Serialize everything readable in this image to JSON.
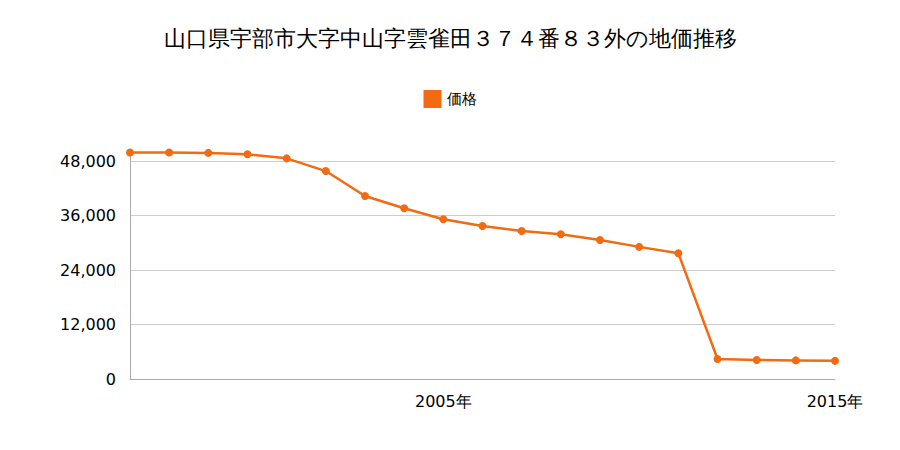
{
  "chart_data": {
    "type": "line",
    "title": "山口県宇部市大字中山字雲雀田３７４番８３外の地価推移",
    "categories": [
      null,
      null,
      null,
      null,
      null,
      null,
      null,
      null,
      "2005年",
      null,
      null,
      null,
      null,
      null,
      null,
      null,
      null,
      null,
      "2015年"
    ],
    "series": [
      {
        "name": "価格",
        "color": "#f26a12",
        "marker": "circle",
        "values": [
          49900,
          49900,
          49800,
          49500,
          48600,
          45800,
          40300,
          37600,
          35200,
          33700,
          32600,
          31900,
          30600,
          29100,
          27700,
          4400,
          4200,
          4100,
          4000
        ]
      }
    ],
    "ylim": [
      0,
      50000
    ],
    "yticks": [
      0,
      {
        "value": 12000,
        "label": "12,000"
      },
      {
        "value": 24000,
        "label": "24,000"
      },
      {
        "value": 36000,
        "label": "36,000"
      },
      {
        "value": 48000,
        "label": "48,000"
      }
    ],
    "grid": true,
    "legend": "top"
  }
}
